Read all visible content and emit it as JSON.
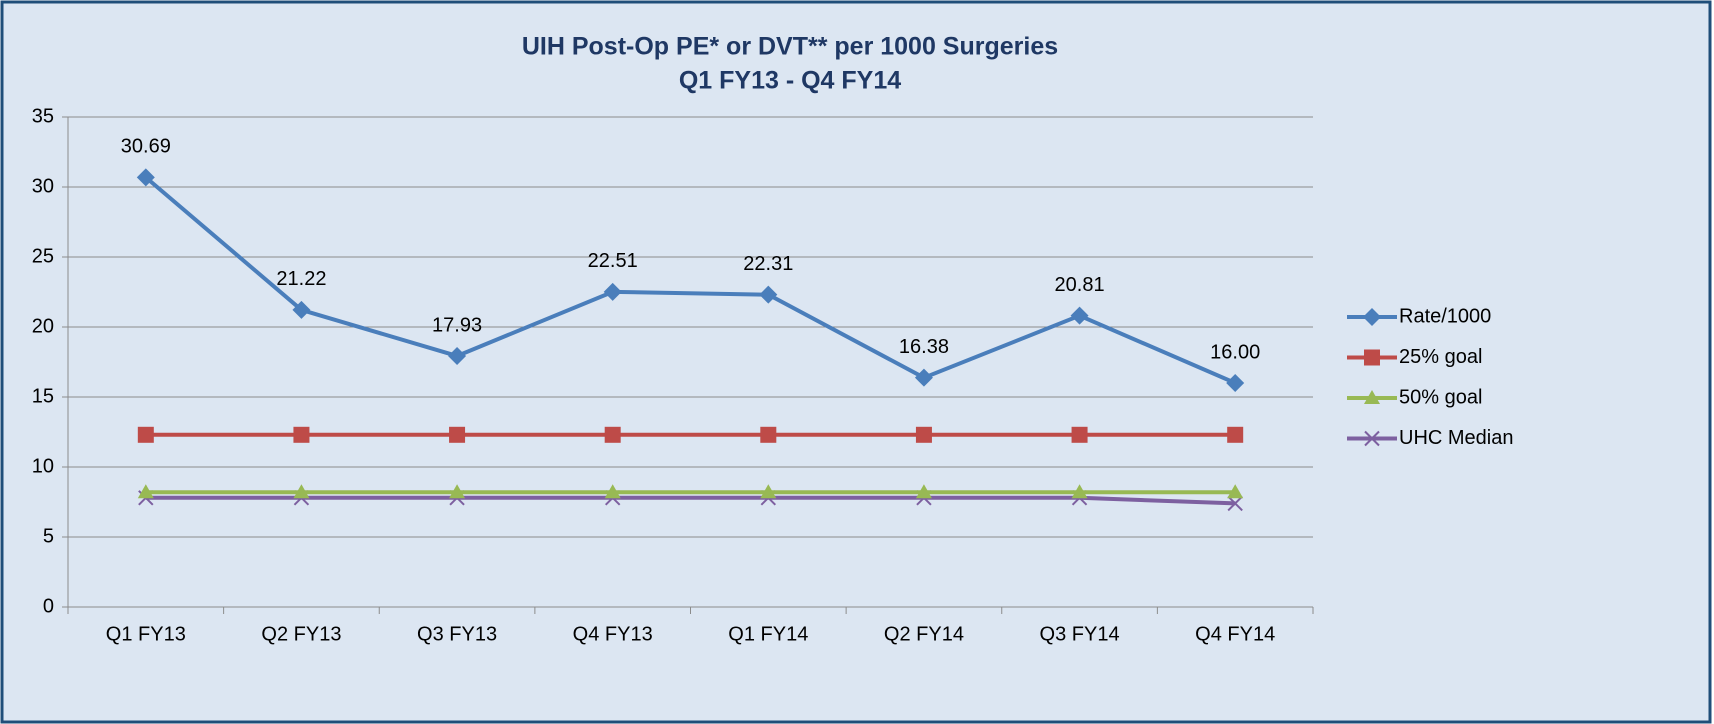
{
  "chart_data": {
    "type": "line",
    "title": "UIH Post-Op PE* or DVT** per 1000 Surgeries",
    "subtitle": "Q1 FY13 - Q4 FY14",
    "categories": [
      "Q1 FY13",
      "Q2 FY13",
      "Q3 FY13",
      "Q4 FY13",
      "Q1 FY14",
      "Q2 FY14",
      "Q3 FY14",
      "Q4 FY14"
    ],
    "series": [
      {
        "name": "Rate/1000",
        "color": "#4a7ebb",
        "marker": "diamond",
        "values": [
          30.69,
          21.22,
          17.93,
          22.51,
          22.31,
          16.38,
          20.81,
          16.0
        ],
        "value_labels": [
          "30.69",
          "21.22",
          "17.93",
          "22.51",
          "22.31",
          "16.38",
          "20.81",
          "16.00"
        ]
      },
      {
        "name": "25% goal",
        "color": "#be4b48",
        "marker": "square",
        "values": [
          12.3,
          12.3,
          12.3,
          12.3,
          12.3,
          12.3,
          12.3,
          12.3
        ]
      },
      {
        "name": "50% goal",
        "color": "#98b954",
        "marker": "triangle",
        "values": [
          8.2,
          8.2,
          8.2,
          8.2,
          8.2,
          8.2,
          8.2,
          8.2
        ]
      },
      {
        "name": "UHC Median",
        "color": "#7d60a0",
        "marker": "x",
        "values": [
          7.8,
          7.8,
          7.8,
          7.8,
          7.8,
          7.8,
          7.8,
          7.4
        ]
      }
    ],
    "ylim": [
      0,
      35
    ],
    "yticks": [
      0,
      5,
      10,
      15,
      20,
      25,
      30,
      35
    ],
    "grid": true,
    "legend": "right"
  }
}
